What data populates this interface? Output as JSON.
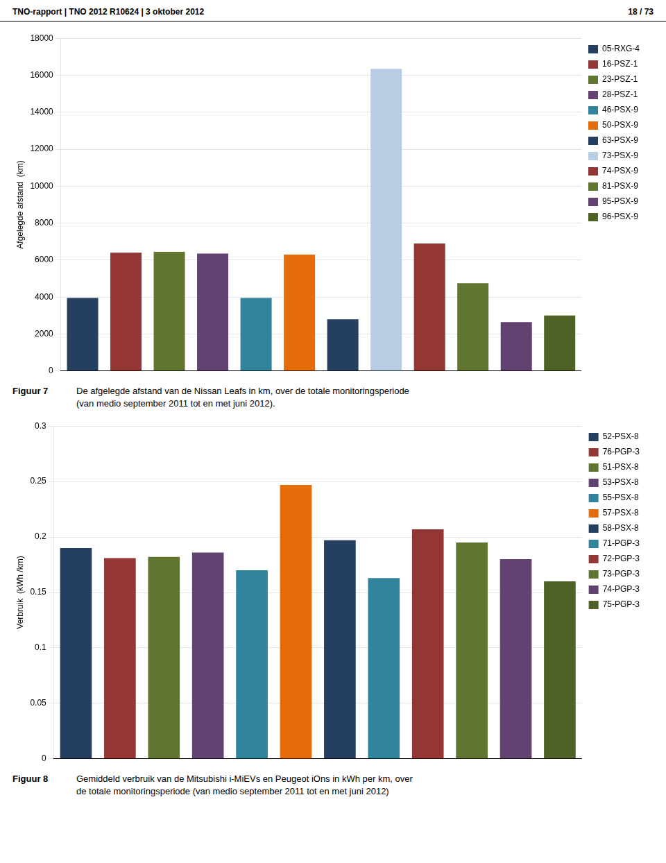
{
  "chart_data": [
    {
      "type": "bar",
      "title": "Figuur 7",
      "subtitle": "De afgelegde afstand van de Nissan Leafs in  km, over de totale monitoringsperiode\n(van medio september 2011 tot en met juni 2012).",
      "annotations": [
        "TNO-rapport | TNO 2012 R10624 | 3 oktober 2012",
        "18 / 73"
      ],
      "ylabel": "Afgelegde afstand  (km)",
      "categories": [
        "05-RXG-4",
        "16-PSZ-1",
        "23-PSZ-1",
        "28-PSZ-1",
        "46-PSX-9",
        "50-PSX-9",
        "63-PSX-9",
        "73-PSX-9",
        "74-PSX-9",
        "81-PSX-9",
        "95-PSX-9",
        "96-PSX-9"
      ],
      "values": [
        3950,
        6400,
        6450,
        6350,
        3950,
        6300,
        2800,
        16350,
        6900,
        4750,
        2650,
        3000
      ],
      "colors": [
        "#243F60",
        "#943634",
        "#5F7530",
        "#614270",
        "#31849B",
        "#E46C0A",
        "#243F60",
        "#B8CCE4",
        "#943634",
        "#5F7530",
        "#614270",
        "#4E6226"
      ],
      "ylim": [
        0,
        18000
      ],
      "yticks": [
        0,
        2000,
        4000,
        6000,
        8000,
        10000,
        12000,
        14000,
        16000,
        18000
      ],
      "grid": true,
      "legend": "right",
      "tick_labels": "y"
    },
    {
      "type": "bar",
      "title": "Figuur 8",
      "subtitle": "Gemiddeld verbruik van de Mitsubishi i-MiEVs en Peugeot iOns in kWh per km, over\nde totale monitoringsperiode (van medio september 2011 tot en met juni 2012)",
      "ylabel": "Verbruik  (kWh /km)",
      "categories": [
        "52-PSX-8",
        "76-PGP-3",
        "51-PSX-8",
        "53-PSX-8",
        "55-PSX-8",
        "57-PSX-8",
        "58-PSX-8",
        "71-PGP-3",
        "72-PGP-3",
        "73-PGP-3",
        "74-PGP-3",
        "75-PGP-3"
      ],
      "values": [
        0.19,
        0.181,
        0.182,
        0.186,
        0.17,
        0.247,
        0.197,
        0.163,
        0.207,
        0.195,
        0.18,
        0.16
      ],
      "colors": [
        "#243F60",
        "#943634",
        "#5F7530",
        "#614270",
        "#31849B",
        "#E46C0A",
        "#243F60",
        "#31849B",
        "#943634",
        "#5F7530",
        "#614270",
        "#4E6226"
      ],
      "ylim": [
        0,
        0.3
      ],
      "yticks": [
        0,
        0.05,
        0.1,
        0.15,
        0.2,
        0.25,
        0.3
      ],
      "grid": true,
      "legend": "right",
      "tick_labels": "y"
    }
  ]
}
